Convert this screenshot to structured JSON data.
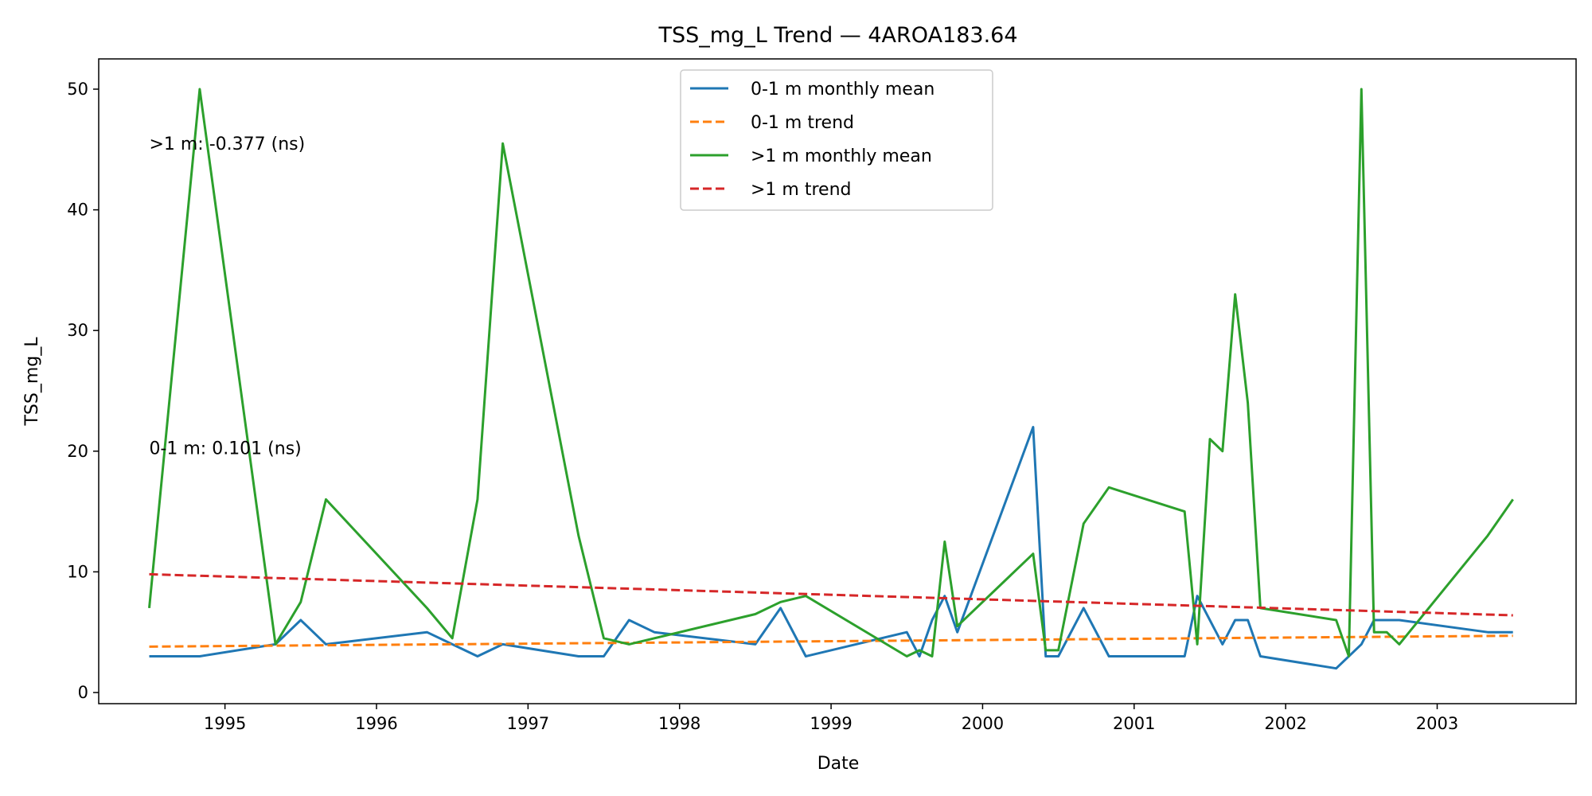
{
  "chart_data": {
    "type": "line",
    "title": "TSS_mg_L Trend — 4AROA183.64",
    "xlabel": "Date",
    "ylabel": "TSS_mg_L",
    "x_axis_type": "date",
    "xlim": [
      "1994-03",
      "2003-12"
    ],
    "ylim": [
      0,
      52
    ],
    "x_ticks": [
      {
        "value": "1995-01",
        "label": "1995"
      },
      {
        "value": "1996-01",
        "label": "1996"
      },
      {
        "value": "1997-01",
        "label": "1997"
      },
      {
        "value": "1998-01",
        "label": "1998"
      },
      {
        "value": "1999-01",
        "label": "1999"
      },
      {
        "value": "2000-01",
        "label": "2000"
      },
      {
        "value": "2001-01",
        "label": "2001"
      },
      {
        "value": "2002-01",
        "label": "2002"
      },
      {
        "value": "2003-01",
        "label": "2003"
      }
    ],
    "y_ticks": [
      0,
      10,
      20,
      30,
      40,
      50
    ],
    "grid": false,
    "legend_position": "top-center",
    "series": [
      {
        "name": "0-1 m monthly mean",
        "color": "#1f77b4",
        "style": "solid",
        "points": [
          [
            "1994-07",
            3
          ],
          [
            "1994-11",
            3
          ],
          [
            "1995-05",
            4
          ],
          [
            "1995-07",
            6
          ],
          [
            "1995-09",
            4
          ],
          [
            "1996-05",
            5
          ],
          [
            "1996-07",
            4
          ],
          [
            "1996-09",
            3
          ],
          [
            "1996-11",
            4
          ],
          [
            "1997-05",
            3
          ],
          [
            "1997-07",
            3
          ],
          [
            "1997-09",
            6
          ],
          [
            "1997-11",
            5
          ],
          [
            "1998-07",
            4
          ],
          [
            "1998-09",
            7
          ],
          [
            "1998-11",
            3
          ],
          [
            "1999-07",
            5
          ],
          [
            "1999-08",
            3
          ],
          [
            "1999-09",
            6
          ],
          [
            "1999-10",
            8
          ],
          [
            "1999-11",
            5
          ],
          [
            "2000-05",
            22
          ],
          [
            "2000-06",
            3
          ],
          [
            "2000-07",
            3
          ],
          [
            "2000-09",
            7
          ],
          [
            "2000-11",
            3
          ],
          [
            "2001-05",
            3
          ],
          [
            "2001-06",
            8
          ],
          [
            "2001-08",
            4
          ],
          [
            "2001-09",
            6
          ],
          [
            "2001-10",
            6
          ],
          [
            "2001-11",
            3
          ],
          [
            "2002-05",
            2
          ],
          [
            "2002-07",
            4
          ],
          [
            "2002-08",
            6
          ],
          [
            "2002-10",
            6
          ],
          [
            "2003-05",
            5
          ],
          [
            "2003-07",
            5
          ]
        ]
      },
      {
        "name": "0-1 m trend",
        "color": "#ff7f0e",
        "style": "dashed",
        "points": [
          [
            "1994-07",
            3.8
          ],
          [
            "2003-07",
            4.7
          ]
        ]
      },
      {
        "name": ">1 m monthly mean",
        "color": "#2ca02c",
        "style": "solid",
        "points": [
          [
            "1994-07",
            7
          ],
          [
            "1994-11",
            50
          ],
          [
            "1995-05",
            4
          ],
          [
            "1995-07",
            7.5
          ],
          [
            "1995-09",
            16
          ],
          [
            "1996-05",
            7
          ],
          [
            "1996-07",
            4.5
          ],
          [
            "1996-09",
            16
          ],
          [
            "1996-11",
            45.5
          ],
          [
            "1997-05",
            13
          ],
          [
            "1997-07",
            4.5
          ],
          [
            "1997-09",
            4
          ],
          [
            "1998-07",
            6.5
          ],
          [
            "1998-09",
            7.5
          ],
          [
            "1998-11",
            8
          ],
          [
            "1999-07",
            3
          ],
          [
            "1999-08",
            3.5
          ],
          [
            "1999-09",
            3
          ],
          [
            "1999-10",
            12.5
          ],
          [
            "1999-11",
            5.5
          ],
          [
            "2000-05",
            11.5
          ],
          [
            "2000-06",
            3.5
          ],
          [
            "2000-07",
            3.5
          ],
          [
            "2000-09",
            14
          ],
          [
            "2000-11",
            17
          ],
          [
            "2001-05",
            15
          ],
          [
            "2001-06",
            4
          ],
          [
            "2001-07",
            21
          ],
          [
            "2001-08",
            20
          ],
          [
            "2001-09",
            33
          ],
          [
            "2001-10",
            24
          ],
          [
            "2001-11",
            7
          ],
          [
            "2002-05",
            6
          ],
          [
            "2002-06",
            3
          ],
          [
            "2002-07",
            50
          ],
          [
            "2002-08",
            5
          ],
          [
            "2002-09",
            5
          ],
          [
            "2002-10",
            4
          ],
          [
            "2003-05",
            13
          ],
          [
            "2003-07",
            16
          ]
        ]
      },
      {
        "name": ">1 m trend",
        "color": "#d62728",
        "style": "dashed",
        "points": [
          [
            "1994-07",
            9.8
          ],
          [
            "2003-07",
            6.4
          ]
        ]
      }
    ],
    "annotations": [
      {
        "text": ">1 m: -0.377 (ns)",
        "x": "1994-07",
        "y": 45.5
      },
      {
        "text": "0-1 m: 0.101 (ns)",
        "x": "1994-07",
        "y": 20.3
      }
    ]
  }
}
